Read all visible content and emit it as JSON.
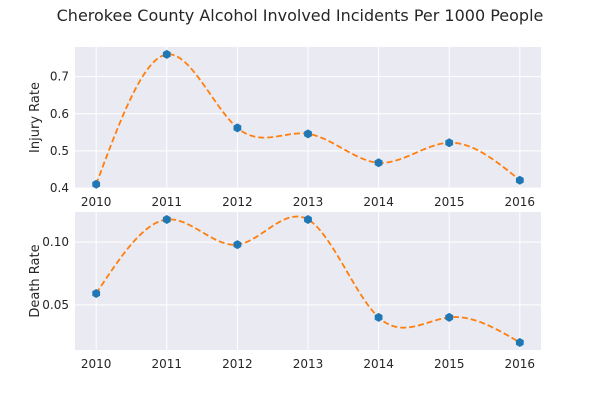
{
  "chart_data": {
    "title": "Cherokee County Alcohol Involved Incidents Per 1000 People",
    "grid": true,
    "panels": [
      {
        "type": "scatter",
        "name": "injury",
        "ylabel": "Injury Rate",
        "x": [
          2010,
          2011,
          2012,
          2013,
          2014,
          2015,
          2016
        ],
        "values": [
          0.41,
          0.76,
          0.562,
          0.546,
          0.468,
          0.522,
          0.421
        ],
        "ylim": [
          0.4,
          0.78
        ],
        "xlim": [
          2009.7,
          2016.3
        ],
        "yticks": [
          0.4,
          0.5,
          0.6,
          0.7
        ],
        "ytick_labels": [
          "0.4",
          "0.5",
          "0.6",
          "0.7"
        ],
        "xticks": [
          2010,
          2011,
          2012,
          2013,
          2014,
          2015,
          2016
        ],
        "xtick_labels": [
          "2010",
          "2011",
          "2012",
          "2013",
          "2014",
          "2015",
          "2016"
        ],
        "trend": "smooth dashed curve"
      },
      {
        "type": "scatter",
        "name": "death",
        "ylabel": "Death Rate",
        "x": [
          2010,
          2011,
          2012,
          2013,
          2014,
          2015,
          2016
        ],
        "values": [
          0.059,
          0.118,
          0.098,
          0.118,
          0.04,
          0.04,
          0.02
        ],
        "ylim": [
          0.014,
          0.124
        ],
        "xlim": [
          2009.7,
          2016.3
        ],
        "yticks": [
          0.05,
          0.1
        ],
        "ytick_labels": [
          "0.05",
          "0.10"
        ],
        "xticks": [
          2010,
          2011,
          2012,
          2013,
          2014,
          2015,
          2016
        ],
        "xtick_labels": [
          "2010",
          "2011",
          "2012",
          "2013",
          "2014",
          "2015",
          "2016"
        ],
        "trend": "smooth dashed curve"
      }
    ],
    "colors": {
      "panel_bg": "#eaeaf2",
      "grid": "#ffffff",
      "marker": "#1f77b4",
      "curve": "#ff7f0e"
    }
  }
}
